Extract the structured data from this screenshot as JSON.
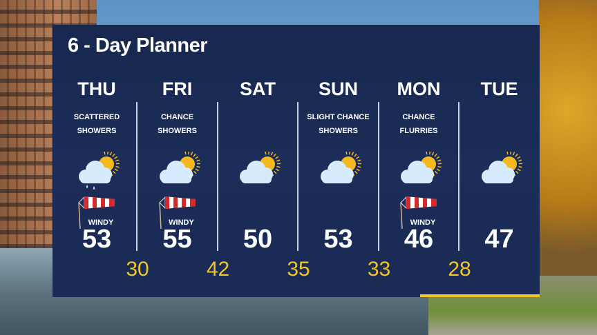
{
  "title": "6 - Day Planner",
  "colors": {
    "panel": "#1b2d58",
    "low_temp": "#f1c62b",
    "accent": "#f1c62b"
  },
  "days": [
    {
      "day": "THU",
      "desc1": "SCATTERED",
      "desc2": "SHOWERS",
      "icon": "partly-cloudy-rain-icon",
      "windy": "WINDY",
      "high": "53"
    },
    {
      "day": "FRI",
      "desc1": "CHANCE",
      "desc2": "SHOWERS",
      "icon": "partly-cloudy-icon",
      "windy": "WINDY",
      "high": "55"
    },
    {
      "day": "SAT",
      "desc1": "",
      "desc2": "",
      "icon": "partly-cloudy-icon",
      "windy": "",
      "high": "50"
    },
    {
      "day": "SUN",
      "desc1": "SLIGHT CHANCE",
      "desc2": "SHOWERS",
      "icon": "partly-cloudy-icon",
      "windy": "",
      "high": "53"
    },
    {
      "day": "MON",
      "desc1": "CHANCE",
      "desc2": "FLURRIES",
      "icon": "partly-cloudy-icon",
      "windy": "WINDY",
      "high": "46"
    },
    {
      "day": "TUE",
      "desc1": "",
      "desc2": "",
      "icon": "partly-cloudy-icon",
      "windy": "",
      "high": "47"
    }
  ],
  "lows": [
    "30",
    "42",
    "35",
    "33",
    "28"
  ]
}
